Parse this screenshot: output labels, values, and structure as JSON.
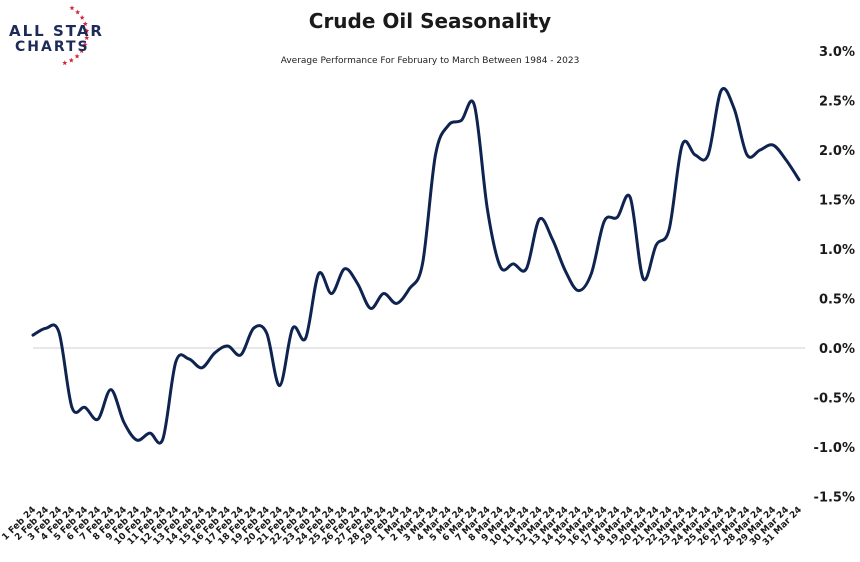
{
  "brand": {
    "line1": "ALL STAR",
    "line2": "CHARTS",
    "star_color": "#d6243a",
    "text_color": "#1c2b5a"
  },
  "chart_data": {
    "type": "line",
    "title": "Crude Oil Seasonality",
    "subtitle": "Average Performance For February to March Between 1984 - 2023",
    "xlabel": "",
    "ylabel": "",
    "y_unit": "%",
    "ylim": [
      -1.5,
      3.0
    ],
    "y_ticks": [
      3.0,
      2.5,
      2.0,
      1.5,
      1.0,
      0.5,
      0.0,
      -0.5,
      -1.0,
      -1.5
    ],
    "y_tick_labels": [
      "3.0%",
      "2.5%",
      "2.0%",
      "1.5%",
      "1.0%",
      "0.5%",
      "0.0%",
      "-0.5%",
      "-1.0%",
      "-1.5%"
    ],
    "grid": "zero line only",
    "line_color": "#0f2350",
    "zero_line_color": "#d0d0d0",
    "x": [
      "1 Feb 24",
      "2 Feb 24",
      "3 Feb 24",
      "4 Feb 24",
      "5 Feb 24",
      "6 Feb 24",
      "7 Feb 24",
      "8 Feb 24",
      "9 Feb 24",
      "10 Feb 24",
      "11 Feb 24",
      "12 Feb 24",
      "13 Feb 24",
      "14 Feb 24",
      "15 Feb 24",
      "16 Feb 24",
      "17 Feb 24",
      "18 Feb 24",
      "19 Feb 24",
      "20 Feb 24",
      "21 Feb 24",
      "22 Feb 24",
      "23 Feb 24",
      "24 Feb 24",
      "25 Feb 24",
      "26 Feb 24",
      "27 Feb 24",
      "28 Feb 24",
      "29 Feb 24",
      "1 Mar 24",
      "2 Mar 24",
      "3 Mar 24",
      "4 Mar 24",
      "5 Mar 24",
      "6 Mar 24",
      "7 Mar 24",
      "8 Mar 24",
      "9 Mar 24",
      "10 Mar 24",
      "11 Mar 24",
      "12 Mar 24",
      "13 Mar 24",
      "14 Mar 24",
      "15 Mar 24",
      "16 Mar 24",
      "17 Mar 24",
      "18 Mar 24",
      "19 Mar 24",
      "20 Mar 24",
      "21 Mar 24",
      "22 Mar 24",
      "23 Mar 24",
      "24 Mar 24",
      "25 Mar 24",
      "26 Mar 24",
      "27 Mar 24",
      "28 Mar 24",
      "29 Mar 24",
      "30 Mar 24",
      "31 Mar 24"
    ],
    "series": [
      {
        "values": [
          0.13,
          0.2,
          0.16,
          -0.6,
          -0.6,
          -0.72,
          -0.42,
          -0.75,
          -0.93,
          -0.86,
          -0.92,
          -0.14,
          -0.11,
          -0.2,
          -0.05,
          0.02,
          -0.07,
          0.2,
          0.15,
          -0.38,
          0.2,
          0.1,
          0.75,
          0.55,
          0.8,
          0.65,
          0.4,
          0.55,
          0.45,
          0.6,
          0.85,
          1.95,
          2.25,
          2.3,
          2.45,
          1.4,
          0.82,
          0.85,
          0.8,
          1.3,
          1.1,
          0.78,
          0.58,
          0.75,
          1.28,
          1.32,
          1.52,
          0.7,
          1.04,
          1.2,
          2.05,
          1.95,
          1.95,
          2.6,
          2.42,
          1.95,
          2.0,
          2.05,
          1.9,
          1.7
        ]
      }
    ]
  }
}
